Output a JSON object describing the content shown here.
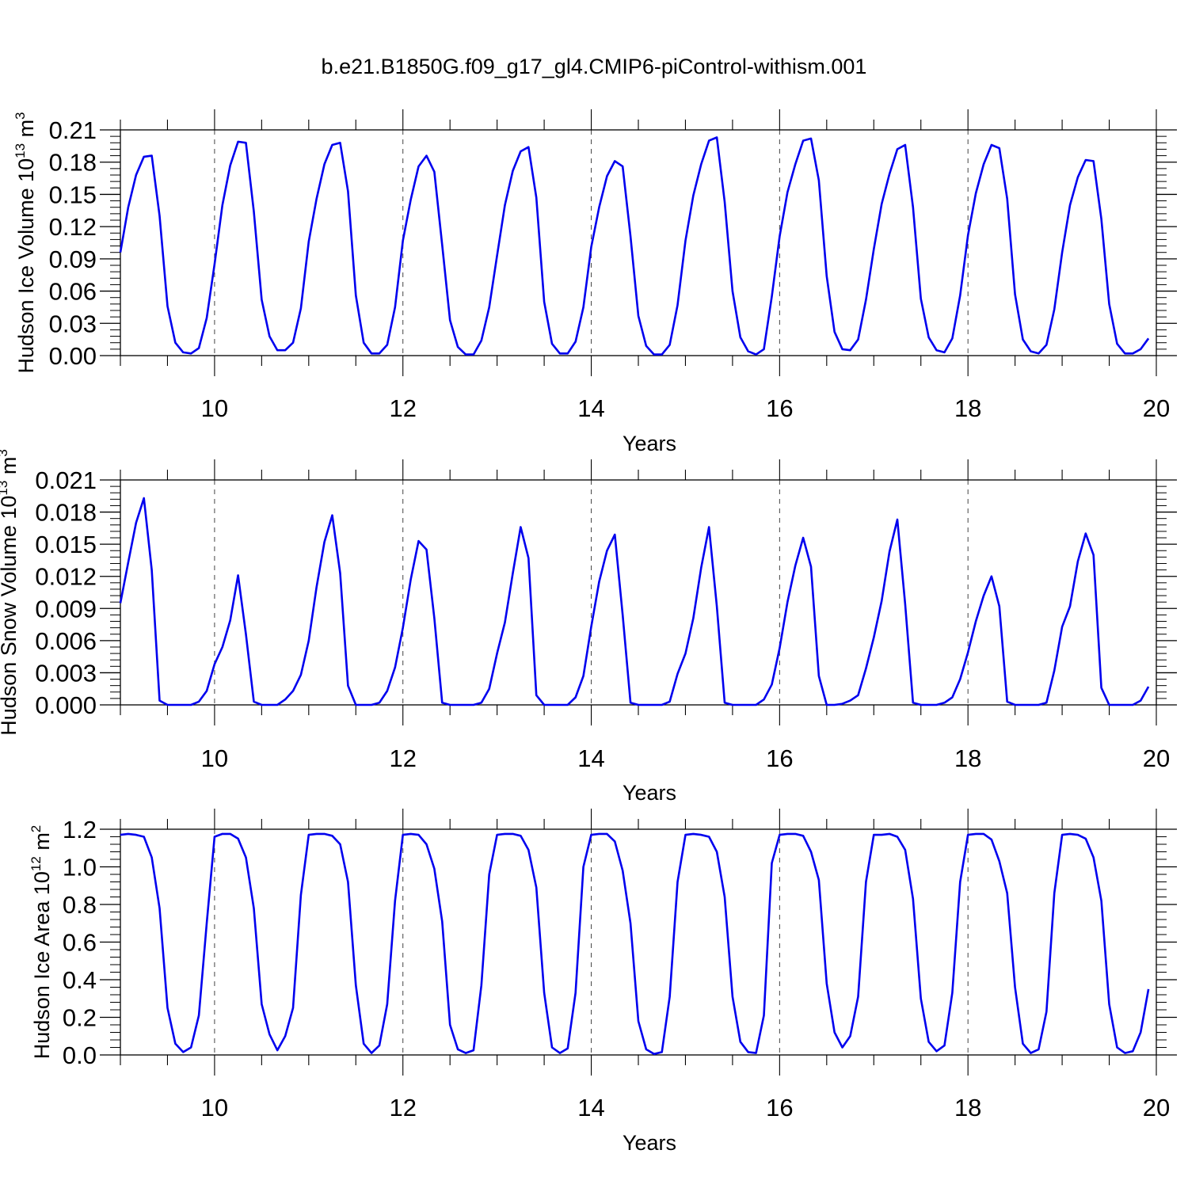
{
  "title": "b.e21.B1850G.f09_g17_gl4.CMIP6-piControl-withism.001",
  "colors": {
    "line": "#0000ee",
    "axis": "#000000",
    "refline": "#444444"
  },
  "chart_data": [
    {
      "type": "line",
      "xlabel": "Years",
      "ylabel": {
        "text": "Hudson Ice Volume 10",
        "sup": "13",
        "unit": " m",
        "unit_sup": "3"
      },
      "xlim": [
        9.0,
        20.0
      ],
      "ylim": [
        0.0,
        0.21
      ],
      "xticks": [
        10,
        12,
        14,
        16,
        18,
        20
      ],
      "ytick_labels": [
        "0.00",
        "0.03",
        "0.06",
        "0.09",
        "0.12",
        "0.15",
        "0.18",
        "0.21"
      ],
      "vertical_ref_lines": [
        10,
        12,
        14,
        16,
        18
      ],
      "series": [
        {
          "x_start": 9.0,
          "x_step": 0.0833333,
          "values": [
            0.096,
            0.138,
            0.168,
            0.185,
            0.186,
            0.13,
            0.046,
            0.012,
            0.003,
            0.002,
            0.007,
            0.035,
            0.085,
            0.14,
            0.177,
            0.199,
            0.198,
            0.134,
            0.052,
            0.018,
            0.005,
            0.005,
            0.012,
            0.044,
            0.106,
            0.146,
            0.178,
            0.196,
            0.198,
            0.153,
            0.056,
            0.012,
            0.002,
            0.002,
            0.01,
            0.045,
            0.107,
            0.145,
            0.176,
            0.186,
            0.171,
            0.103,
            0.033,
            0.008,
            0.001,
            0.001,
            0.014,
            0.045,
            0.093,
            0.14,
            0.172,
            0.19,
            0.194,
            0.147,
            0.05,
            0.011,
            0.002,
            0.002,
            0.013,
            0.045,
            0.101,
            0.138,
            0.167,
            0.181,
            0.176,
            0.111,
            0.037,
            0.009,
            0.001,
            0.001,
            0.01,
            0.047,
            0.107,
            0.149,
            0.178,
            0.2,
            0.203,
            0.143,
            0.06,
            0.017,
            0.004,
            0.001,
            0.006,
            0.055,
            0.111,
            0.152,
            0.178,
            0.2,
            0.202,
            0.163,
            0.074,
            0.022,
            0.006,
            0.005,
            0.015,
            0.052,
            0.099,
            0.141,
            0.169,
            0.192,
            0.196,
            0.138,
            0.053,
            0.017,
            0.005,
            0.003,
            0.016,
            0.056,
            0.112,
            0.151,
            0.178,
            0.196,
            0.193,
            0.146,
            0.057,
            0.015,
            0.004,
            0.002,
            0.01,
            0.043,
            0.096,
            0.14,
            0.166,
            0.182,
            0.181,
            0.127,
            0.048,
            0.011,
            0.002,
            0.002,
            0.006,
            0.016
          ]
        }
      ]
    },
    {
      "type": "line",
      "xlabel": "Years",
      "ylabel": {
        "text": "Hudson Snow Volume 10",
        "sup": "13",
        "unit": " m",
        "unit_sup": "3"
      },
      "xlim": [
        9.0,
        20.0
      ],
      "ylim": [
        0.0,
        0.021
      ],
      "xticks": [
        10,
        12,
        14,
        16,
        18,
        20
      ],
      "ytick_labels": [
        "0.000",
        "0.003",
        "0.006",
        "0.009",
        "0.012",
        "0.015",
        "0.018",
        "0.021"
      ],
      "vertical_ref_lines": [
        10,
        12,
        14,
        16,
        18
      ],
      "series": [
        {
          "x_start": 9.0,
          "x_step": 0.0833333,
          "values": [
            0.0095,
            0.0133,
            0.017,
            0.0193,
            0.0126,
            0.0004,
            0.0,
            0.0,
            0.0,
            0.0,
            0.0003,
            0.0013,
            0.0038,
            0.0054,
            0.0079,
            0.0121,
            0.0066,
            0.0003,
            0.0,
            0.0,
            0.0,
            0.0005,
            0.0013,
            0.0028,
            0.006,
            0.011,
            0.0152,
            0.0177,
            0.0123,
            0.0018,
            0.0,
            0.0,
            0.0,
            0.0002,
            0.0013,
            0.0035,
            0.0072,
            0.0117,
            0.0153,
            0.0145,
            0.0081,
            0.0002,
            0.0,
            0.0,
            0.0,
            0.0,
            0.0002,
            0.0015,
            0.0048,
            0.0077,
            0.0123,
            0.0166,
            0.0137,
            0.0009,
            0.0,
            0.0,
            0.0,
            0.0,
            0.0007,
            0.0027,
            0.0073,
            0.0115,
            0.0144,
            0.0159,
            0.0084,
            0.0002,
            0.0,
            0.0,
            0.0,
            0.0,
            0.0003,
            0.0029,
            0.0048,
            0.0081,
            0.0128,
            0.0166,
            0.0092,
            0.0002,
            0.0,
            0.0,
            0.0,
            0.0,
            0.0005,
            0.0019,
            0.0053,
            0.0096,
            0.013,
            0.0156,
            0.0129,
            0.0027,
            0.0,
            0.0,
            0.0001,
            0.0004,
            0.0009,
            0.0034,
            0.0063,
            0.0097,
            0.0143,
            0.0173,
            0.0094,
            0.0002,
            0.0,
            0.0,
            0.0,
            0.0002,
            0.0007,
            0.0024,
            0.0049,
            0.0078,
            0.0102,
            0.012,
            0.0092,
            0.0003,
            0.0,
            0.0,
            0.0,
            0.0,
            0.0002,
            0.0032,
            0.0073,
            0.0092,
            0.0134,
            0.016,
            0.014,
            0.0016,
            0.0,
            0.0,
            0.0,
            0.0,
            0.0004,
            0.0017
          ]
        }
      ]
    },
    {
      "type": "line",
      "xlabel": "Years",
      "ylabel": {
        "text": "Hudson Ice Area 10",
        "sup": "12",
        "unit": " m",
        "unit_sup": "2"
      },
      "xlim": [
        9.0,
        20.0
      ],
      "ylim": [
        0.0,
        1.2
      ],
      "xticks": [
        10,
        12,
        14,
        16,
        18,
        20
      ],
      "ytick_labels": [
        "0.0",
        "0.2",
        "0.4",
        "0.6",
        "0.8",
        "1.0",
        "1.2"
      ],
      "vertical_ref_lines": [
        10,
        12,
        14,
        16,
        18
      ],
      "series": [
        {
          "x_start": 9.0,
          "x_step": 0.0833333,
          "values": [
            1.17,
            1.175,
            1.17,
            1.16,
            1.05,
            0.78,
            0.25,
            0.06,
            0.015,
            0.04,
            0.21,
            0.7,
            1.16,
            1.175,
            1.175,
            1.15,
            1.05,
            0.78,
            0.27,
            0.11,
            0.025,
            0.1,
            0.25,
            0.85,
            1.17,
            1.175,
            1.175,
            1.165,
            1.12,
            0.92,
            0.37,
            0.06,
            0.01,
            0.05,
            0.27,
            0.82,
            1.17,
            1.175,
            1.17,
            1.12,
            0.99,
            0.71,
            0.16,
            0.03,
            0.01,
            0.025,
            0.37,
            0.96,
            1.17,
            1.175,
            1.175,
            1.165,
            1.09,
            0.89,
            0.33,
            0.04,
            0.01,
            0.035,
            0.33,
            1.0,
            1.17,
            1.175,
            1.175,
            1.135,
            0.98,
            0.7,
            0.18,
            0.03,
            0.005,
            0.015,
            0.31,
            0.92,
            1.17,
            1.175,
            1.17,
            1.16,
            1.08,
            0.84,
            0.31,
            0.07,
            0.015,
            0.01,
            0.21,
            1.02,
            1.17,
            1.175,
            1.175,
            1.165,
            1.08,
            0.93,
            0.38,
            0.12,
            0.04,
            0.1,
            0.31,
            0.92,
            1.17,
            1.17,
            1.175,
            1.16,
            1.09,
            0.83,
            0.3,
            0.07,
            0.02,
            0.05,
            0.33,
            0.92,
            1.17,
            1.175,
            1.175,
            1.145,
            1.03,
            0.86,
            0.36,
            0.06,
            0.01,
            0.03,
            0.23,
            0.86,
            1.17,
            1.175,
            1.17,
            1.15,
            1.05,
            0.82,
            0.27,
            0.04,
            0.01,
            0.02,
            0.12,
            0.35
          ]
        }
      ]
    }
  ]
}
